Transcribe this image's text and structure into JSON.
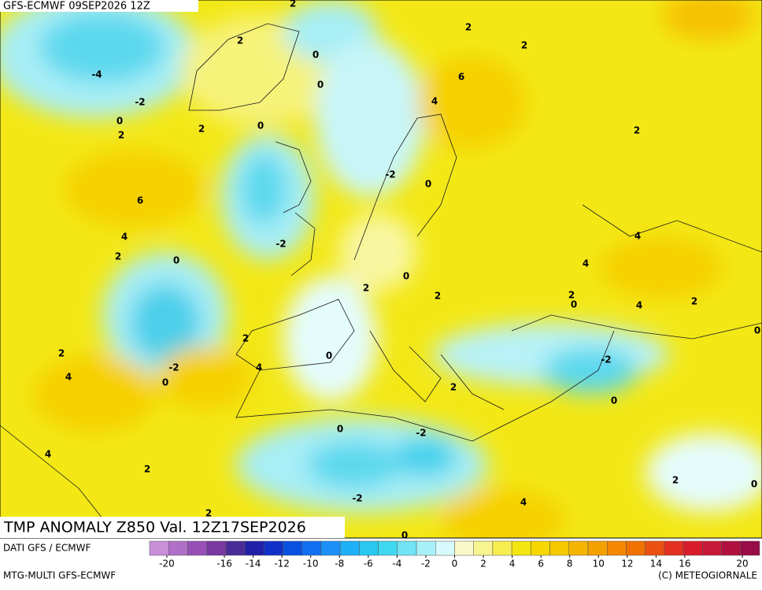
{
  "header": {
    "title": "GFS-ECMWF 09SEP2026 12Z"
  },
  "map": {
    "caption": "TMP ANOMALY Z850 Val. 12Z17SEP2026",
    "contour_labels": [
      2,
      -4,
      2,
      0,
      0,
      6,
      4,
      2,
      2,
      -2,
      0,
      2,
      2,
      0,
      2,
      -2,
      0,
      6,
      4,
      2,
      0,
      -2,
      4,
      4,
      0,
      2,
      2,
      2,
      0,
      4,
      2,
      2,
      0,
      4,
      -2,
      2,
      4,
      -2,
      0,
      2,
      0,
      0,
      0,
      -2,
      4,
      2,
      2,
      0,
      -2,
      4,
      2,
      0
    ]
  },
  "footer": {
    "source": "DATI GFS / ECMWF",
    "model": "MTG-MULTI GFS-ECMWF",
    "copyright": "(C) METEOGIORNALE"
  },
  "colorbar": {
    "lim": [
      -21.2,
      21.2
    ],
    "ticks": [
      -20,
      -16,
      -14,
      -12,
      -10,
      -8,
      -6,
      -4,
      -2,
      0,
      2,
      4,
      6,
      8,
      10,
      12,
      14,
      16,
      20
    ],
    "colors": [
      "#c890d8",
      "#b070c8",
      "#9850b8",
      "#7838a0",
      "#4a2c98",
      "#2020a8",
      "#1030c8",
      "#0a50e0",
      "#1070f0",
      "#1c90f8",
      "#20b0f8",
      "#28c8f0",
      "#40d8f0",
      "#70e4f4",
      "#a8f0f8",
      "#d8fafc",
      "#fafac8",
      "#f8f490",
      "#f6ee50",
      "#f4e610",
      "#f6d800",
      "#f6c800",
      "#f4b400",
      "#f4a000",
      "#f48800",
      "#f07000",
      "#ec5010",
      "#e43020",
      "#d81c2c",
      "#c81838",
      "#b01040",
      "#980c48"
    ]
  }
}
